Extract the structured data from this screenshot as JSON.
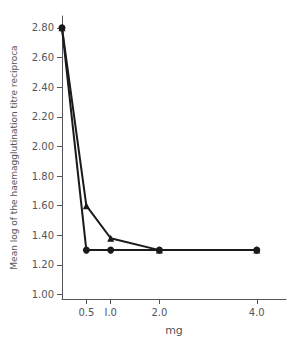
{
  "chart_data": {
    "type": "line",
    "xlabel": "mg",
    "ylabel": "Mean log of the haemagglutination titre reciproca",
    "x": [
      0,
      0.5,
      1.0,
      2.0,
      4.0
    ],
    "series": [
      {
        "color": "#1a1a1a",
        "marker": "circle",
        "line_style": "solid",
        "values": [
          2.8,
          1.3,
          1.3,
          1.3,
          1.3
        ]
      },
      {
        "color": "#1a1a1a",
        "marker": "triangle",
        "line_style": "solid",
        "values": [
          2.8,
          1.6,
          1.38,
          1.3,
          1.3
        ]
      }
    ],
    "xlim": [
      0,
      4.6
    ],
    "ylim": [
      0.97,
      2.88
    ],
    "xticks": [
      0.5,
      {
        "value": 1.0,
        "label": "I.0"
      },
      {
        "value": 2.0,
        "label": "2.0"
      },
      {
        "value": 4.0,
        "label": "4.0"
      }
    ],
    "yticks": [
      {
        "value": 1.0,
        "label": "1.00"
      },
      {
        "value": 1.2,
        "label": "1.20"
      },
      {
        "value": 1.4,
        "label": "1.40"
      },
      {
        "value": 1.6,
        "label": "1.60"
      },
      {
        "value": 1.8,
        "label": "1.80"
      },
      {
        "value": 2.0,
        "label": "2.00"
      },
      {
        "value": 2.2,
        "label": "2.20"
      },
      {
        "value": 2.4,
        "label": "2.40"
      },
      {
        "value": 2.6,
        "label": "2.60"
      },
      {
        "value": 2.8,
        "label": "2.80"
      }
    ],
    "grid": false
  }
}
